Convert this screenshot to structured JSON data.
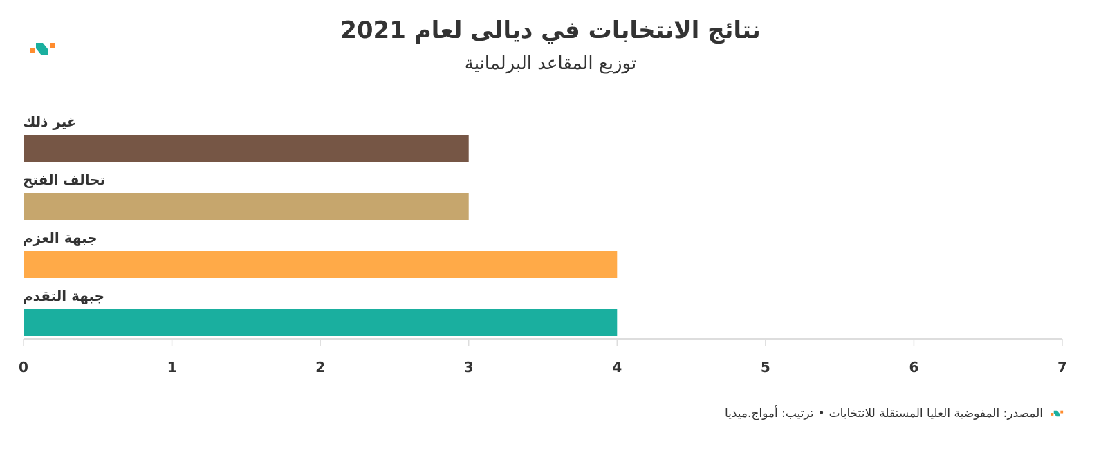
{
  "header": {
    "title": "نتائج الانتخابات في ديالى لعام 2021",
    "subtitle": "توزيع المقاعد البرلمانية"
  },
  "logo": {
    "icon": "awaj-media-logo-icon",
    "colors": [
      "#ff8c2e",
      "#1aaf9f"
    ]
  },
  "footer": {
    "source": "المصدر: المفوضية العليا المستقلة للانتخابات",
    "separator": "•",
    "credit": "ترتيب: أمواج.ميديا"
  },
  "chart_data": {
    "type": "bar",
    "orientation": "horizontal",
    "categories": [
      "غير ذلك",
      "تحالف الفتح",
      "جبهة العزم",
      "جبهة التقدم"
    ],
    "values": [
      3,
      3,
      4,
      4
    ],
    "colors": [
      "#765645",
      "#c6a66d",
      "#ffaa48",
      "#1aaf9f"
    ],
    "xlim": [
      0,
      7
    ],
    "xticks": [
      "0",
      "1",
      "2",
      "3",
      "4",
      "5",
      "6",
      "7"
    ],
    "grid": false
  }
}
